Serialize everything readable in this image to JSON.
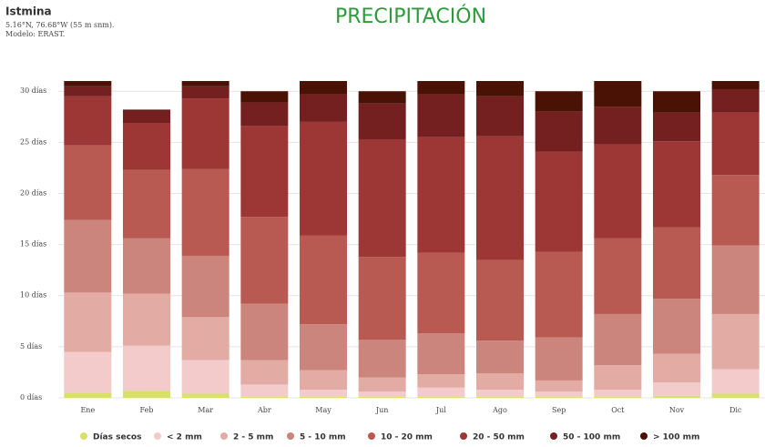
{
  "chart_data": {
    "type": "stacked_bar",
    "title": "PRECIPITACIÓN",
    "location": "Istmina",
    "coordinates": "5.16°N, 76.68°W (55 m snm).",
    "model": "Modelo: ERAST.",
    "categories": [
      "Ene",
      "Feb",
      "Mar",
      "Abr",
      "May",
      "Jun",
      "Jul",
      "Ago",
      "Sep",
      "Oct",
      "Nov",
      "Dic"
    ],
    "ylim": [
      0,
      31
    ],
    "yticks": [
      {
        "value": 0,
        "label": "0 días"
      },
      {
        "value": 5,
        "label": "5 días"
      },
      {
        "value": 10,
        "label": "10 días"
      },
      {
        "value": 15,
        "label": "15 días"
      },
      {
        "value": 20,
        "label": "20 días"
      },
      {
        "value": 25,
        "label": "25 días"
      },
      {
        "value": 30,
        "label": "30 días"
      }
    ],
    "grid": true,
    "series": [
      {
        "name": "Días secos",
        "color": "#d6e06a",
        "values": [
          0.5,
          0.7,
          0.4,
          0.1,
          0.1,
          0.1,
          0.1,
          0.1,
          0.1,
          0.1,
          0.2,
          0.4
        ]
      },
      {
        "name": "< 2 mm",
        "color": "#f2cbca",
        "values": [
          4.0,
          4.4,
          3.3,
          1.2,
          0.7,
          0.5,
          0.9,
          0.7,
          0.5,
          0.7,
          1.3,
          2.4
        ]
      },
      {
        "name": "2 - 5 mm",
        "color": "#e2aba3",
        "values": [
          5.8,
          5.1,
          4.2,
          2.4,
          1.9,
          1.4,
          1.3,
          1.6,
          1.1,
          2.4,
          2.8,
          5.4
        ]
      },
      {
        "name": "5 - 10 mm",
        "color": "#cc857c",
        "values": [
          7.1,
          5.4,
          6.0,
          5.5,
          4.5,
          3.7,
          4.0,
          3.2,
          4.2,
          5.0,
          5.4,
          6.7
        ]
      },
      {
        "name": "10 - 20 mm",
        "color": "#b85a52",
        "values": [
          7.3,
          6.7,
          8.5,
          8.5,
          8.7,
          8.1,
          7.9,
          7.9,
          8.4,
          7.4,
          7.0,
          6.9
        ]
      },
      {
        "name": "20 - 50 mm",
        "color": "#9c3735",
        "values": [
          4.8,
          4.6,
          6.9,
          8.9,
          11.1,
          11.5,
          11.3,
          12.1,
          9.8,
          9.2,
          8.4,
          6.1
        ]
      },
      {
        "name": "50 - 100 mm",
        "color": "#742020",
        "values": [
          1.0,
          1.2,
          1.2,
          2.3,
          2.7,
          3.5,
          4.2,
          3.9,
          3.9,
          3.7,
          2.8,
          2.3
        ]
      },
      {
        "name": "> 100 mm",
        "color": "#4a1205",
        "values": [
          0.5,
          0.1,
          0.5,
          1.1,
          1.3,
          1.2,
          1.3,
          1.5,
          2.0,
          2.5,
          2.1,
          0.8
        ]
      }
    ]
  }
}
